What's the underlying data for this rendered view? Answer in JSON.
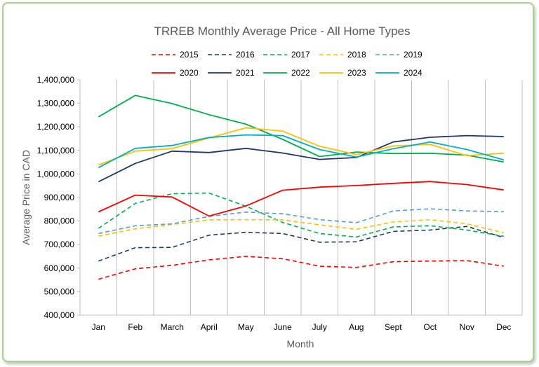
{
  "chart_data": {
    "type": "line",
    "title": "TRREB Monthly Average Price - All Home Types",
    "xlabel": "Month",
    "ylabel": "Average Price in CAD",
    "ylim": [
      400000,
      1400000
    ],
    "ytick_step": 100000,
    "grid": "vertical",
    "legend_position": "top",
    "categories": [
      "Jan",
      "Feb",
      "March",
      "April",
      "May",
      "June",
      "July",
      "Aug",
      "Sept",
      "Oct",
      "Nov",
      "Dec"
    ],
    "series": [
      {
        "name": "2015",
        "color": "#ff0000",
        "dashed": true,
        "values": [
          553000,
          597000,
          612000,
          635000,
          650000,
          640000,
          608000,
          603000,
          627000,
          630000,
          632000,
          608000
        ]
      },
      {
        "name": "2016",
        "color": "#1f3864",
        "dashed": true,
        "values": [
          630000,
          687000,
          688000,
          740000,
          752000,
          747000,
          710000,
          712000,
          756000,
          762000,
          777000,
          730000
        ]
      },
      {
        "name": "2017",
        "color": "#00b050",
        "dashed": true,
        "values": [
          769000,
          875000,
          916000,
          919000,
          863000,
          794000,
          747000,
          732000,
          775000,
          780000,
          762000,
          735000
        ]
      },
      {
        "name": "2018",
        "color": "#ffc000",
        "dashed": true,
        "values": [
          736000,
          767000,
          785000,
          805000,
          806000,
          805000,
          784000,
          765000,
          796000,
          806000,
          788000,
          750000
        ]
      },
      {
        "name": "2019",
        "color": "#5b9bd5",
        "dashed": true,
        "values": [
          747000,
          780000,
          788000,
          820000,
          838000,
          831000,
          806000,
          793000,
          843000,
          852000,
          843000,
          840000
        ]
      },
      {
        "name": "2020",
        "color": "#ff0000",
        "dashed": false,
        "values": [
          839000,
          910000,
          902000,
          821000,
          864000,
          931000,
          944000,
          951000,
          960000,
          968000,
          955000,
          932000
        ]
      },
      {
        "name": "2021",
        "color": "#1f3864",
        "dashed": false,
        "values": [
          967000,
          1045000,
          1097000,
          1091000,
          1109000,
          1089000,
          1062000,
          1070000,
          1136000,
          1156000,
          1163000,
          1159000
        ]
      },
      {
        "name": "2022",
        "color": "#00b050",
        "dashed": false,
        "values": [
          1243000,
          1334000,
          1299000,
          1252000,
          1212000,
          1147000,
          1074000,
          1093000,
          1087000,
          1088000,
          1080000,
          1051000
        ]
      },
      {
        "name": "2023",
        "color": "#ffc000",
        "dashed": false,
        "values": [
          1038000,
          1097000,
          1108000,
          1153000,
          1196000,
          1182000,
          1118000,
          1082000,
          1119000,
          1126000,
          1078000,
          1088000
        ]
      },
      {
        "name": "2024",
        "color": "#00b0c8",
        "dashed": false,
        "values": [
          1027000,
          1109000,
          1121000,
          1155000,
          1166000,
          1163000,
          1104000,
          1072000,
          1107000,
          1136000,
          1104000,
          1060000
        ]
      }
    ]
  }
}
